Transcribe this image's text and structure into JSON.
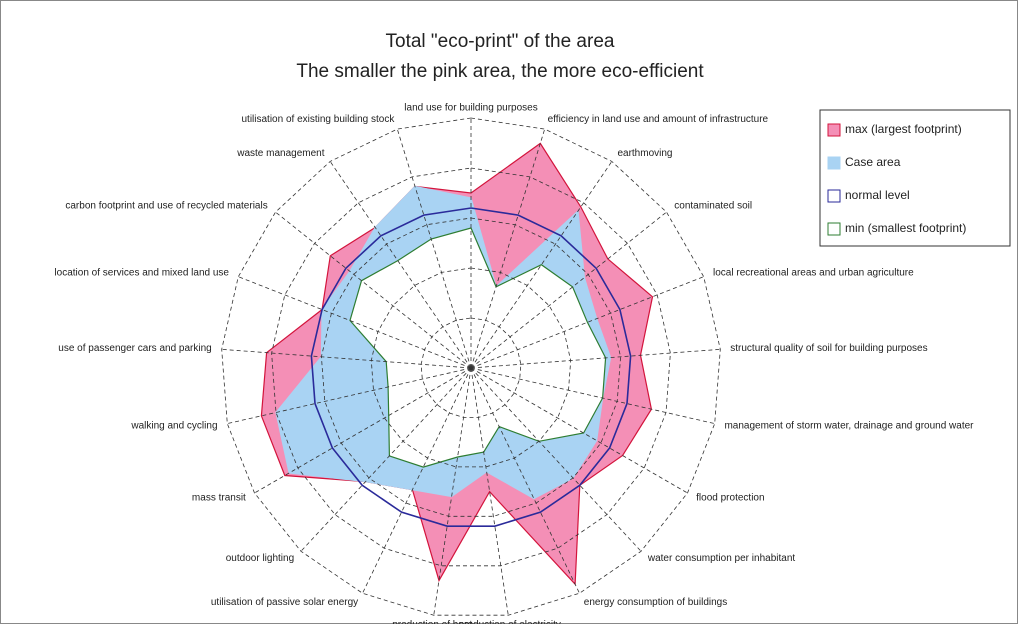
{
  "chart_data": {
    "type": "radar",
    "title": [
      "Total \"eco-print\" of the area",
      "The smaller the pink area, the more eco-efficient"
    ],
    "categories": [
      "land use for building purposes",
      "efficiency in land use and amount of infrastructure",
      "earthmoving",
      "contaminated soil",
      "local recreational areas and urban agriculture",
      "structural quality of soil for building purposes",
      "management of storm water, drainage and ground water",
      "flood protection",
      "water consumption per inhabitant",
      "energy consumption of buildings",
      "production of electricity",
      "production of heat",
      "utilisation of passive solar energy",
      "outdoor lighting",
      "mass transit",
      "walking and cycling",
      "use of passenger cars and parking",
      "location of services and mixed land use",
      "carbon footprint and use of recycled materials",
      "waste management",
      "utilisation of existing building stock"
    ],
    "series": [
      {
        "name": "max (largest footprint)",
        "color": "#f48fb6",
        "stroke": "#d3143c",
        "values": [
          3.5,
          4.7,
          3.9,
          3.5,
          3.9,
          3.4,
          3.7,
          3.5,
          3.2,
          4.8,
          2.5,
          4.3,
          2.7,
          3.1,
          4.3,
          4.3,
          4.1,
          3.2,
          3.6,
          3.4,
          3.8
        ]
      },
      {
        "name": "Case area",
        "color": "#a9d3f3",
        "stroke": "#a9d3f3",
        "values": [
          3.4,
          1.7,
          3.8,
          2.9,
          2.7,
          2.8,
          2.7,
          2.9,
          3.0,
          2.9,
          2.1,
          2.6,
          2.7,
          3.1,
          4.2,
          4.0,
          3.0,
          3.2,
          3.1,
          3.4,
          3.8
        ]
      },
      {
        "name": "normal level",
        "color": "none",
        "stroke": "#2a2a9a",
        "values": [
          3.2,
          3.2,
          3.2,
          3.2,
          3.2,
          3.2,
          3.2,
          3.2,
          3.2,
          3.2,
          3.2,
          3.2,
          3.2,
          3.2,
          3.2,
          3.2,
          3.2,
          3.2,
          3.2,
          3.2,
          3.2
        ]
      },
      {
        "name": "min (smallest footprint)",
        "color": "#ffffff",
        "stroke": "#2e7d32",
        "values": [
          2.8,
          1.7,
          2.5,
          2.6,
          2.5,
          2.7,
          2.7,
          2.6,
          2.0,
          1.3,
          1.7,
          1.8,
          2.2,
          2.4,
          1.9,
          1.7,
          1.7,
          2.6,
          2.8,
          2.6,
          2.7
        ]
      }
    ],
    "ylim": [
      0,
      5
    ],
    "yticks": [
      1,
      2,
      3,
      4,
      5
    ],
    "grid": true,
    "legend": "top-right"
  }
}
